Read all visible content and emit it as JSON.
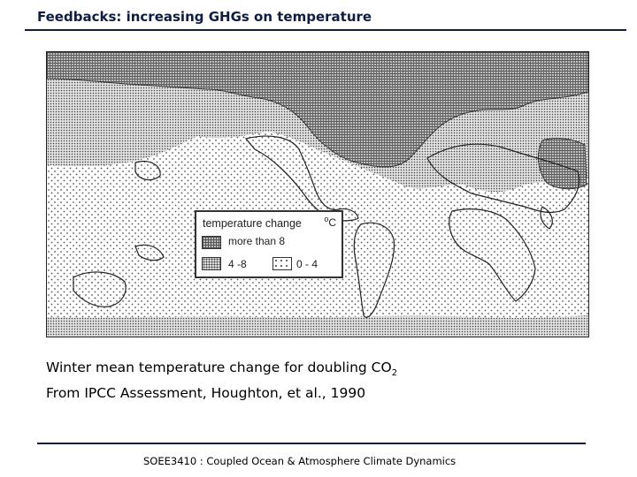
{
  "slide": {
    "title": "Feedbacks: increasing GHGs on temperature",
    "footer": "SOEE3410 : Coupled Ocean & Atmosphere Climate Dynamics"
  },
  "map": {
    "legend": {
      "title": "temperature change",
      "unit_symbol": "o",
      "unit_letter": "C",
      "items": [
        {
          "label": "more than 8"
        },
        {
          "label": "4 -8"
        },
        {
          "label": "0 - 4"
        }
      ]
    }
  },
  "caption": {
    "line1_prefix": "Winter mean temperature change for doubling CO",
    "line1_subscript": "2",
    "line2": "From IPCC Assessment, Houghton, et al., 1990"
  }
}
